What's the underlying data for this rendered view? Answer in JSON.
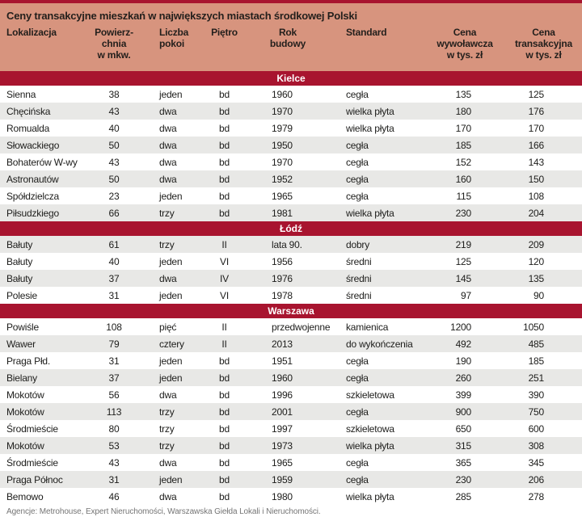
{
  "colors": {
    "accent_red": "#a8142f",
    "header_salmon": "#d7947e",
    "stripe_gray": "#e8e8e6"
  },
  "chart_data": {
    "type": "table",
    "title": "Ceny transakcyjne mieszkań w największych miastach środkowej Polski",
    "columns": [
      "Lokalizacja",
      "Powierz-\nchnia\nw mkw.",
      "Liczba\npokoi",
      "Piętro",
      "Rok\nbudowy",
      "Standard",
      "Cena\nwywoławcza\nw tys. zł",
      "Cena\ntransakcyjna\nw tys. zł"
    ],
    "sections": [
      {
        "city": "Kielce",
        "rows": [
          [
            "Sienna",
            "38",
            "jeden",
            "bd",
            "1960",
            "cegła",
            "135",
            "125"
          ],
          [
            "Chęcińska",
            "43",
            "dwa",
            "bd",
            "1970",
            "wielka płyta",
            "180",
            "176"
          ],
          [
            "Romualda",
            "40",
            "dwa",
            "bd",
            "1979",
            "wielka płyta",
            "170",
            "170"
          ],
          [
            "Słowackiego",
            "50",
            "dwa",
            "bd",
            "1950",
            "cegła",
            "185",
            "166"
          ],
          [
            "Bohaterów W-wy",
            "43",
            "dwa",
            "bd",
            "1970",
            "cegła",
            "152",
            "143"
          ],
          [
            "Astronautów",
            "50",
            "dwa",
            "bd",
            "1952",
            "cegła",
            "160",
            "150"
          ],
          [
            "Spółdzielcza",
            "23",
            "jeden",
            "bd",
            "1965",
            "cegła",
            "115",
            "108"
          ],
          [
            "Piłsudzkiego",
            "66",
            "trzy",
            "bd",
            "1981",
            "wielka płyta",
            "230",
            "204"
          ]
        ]
      },
      {
        "city": "Łódź",
        "rows": [
          [
            "Bałuty",
            "61",
            "trzy",
            "II",
            "lata 90.",
            "dobry",
            "219",
            "209"
          ],
          [
            "Bałuty",
            "40",
            "jeden",
            "VI",
            "1956",
            "średni",
            "125",
            "120"
          ],
          [
            "Bałuty",
            "37",
            "dwa",
            "IV",
            "1976",
            "średni",
            "145",
            "135"
          ],
          [
            "Polesie",
            "31",
            "jeden",
            "VI",
            "1978",
            "średni",
            "97",
            "90"
          ]
        ]
      },
      {
        "city": "Warszawa",
        "rows": [
          [
            "Powiśle",
            "108",
            "pięć",
            "II",
            "przedwojenne",
            "kamienica",
            "1200",
            "1050"
          ],
          [
            "Wawer",
            "79",
            "cztery",
            "II",
            "2013",
            "do wykończenia",
            "492",
            "485"
          ],
          [
            "Praga Płd.",
            "31",
            "jeden",
            "bd",
            "1951",
            "cegła",
            "190",
            "185"
          ],
          [
            "Bielany",
            "37",
            "jeden",
            "bd",
            "1960",
            "cegła",
            "260",
            "251"
          ],
          [
            "Mokotów",
            "56",
            "dwa",
            "bd",
            "1996",
            "szkieletowa",
            "399",
            "390"
          ],
          [
            "Mokotów",
            "113",
            "trzy",
            "bd",
            "2001",
            "cegła",
            "900",
            "750"
          ],
          [
            "Środmieście",
            "80",
            "trzy",
            "bd",
            "1997",
            "szkieletowa",
            "650",
            "600"
          ],
          [
            "Mokotów",
            "53",
            "trzy",
            "bd",
            "1973",
            "wielka płyta",
            "315",
            "308"
          ],
          [
            "Środmieście",
            "43",
            "dwa",
            "bd",
            "1965",
            "cegła",
            "365",
            "345"
          ],
          [
            "Praga Północ",
            "31",
            "jeden",
            "bd",
            "1959",
            "cegła",
            "230",
            "206"
          ],
          [
            "Bemowo",
            "46",
            "dwa",
            "bd",
            "1980",
            "wielka płyta",
            "285",
            "278"
          ]
        ]
      }
    ],
    "source_note": "Agencje: Metrohouse, Expert Nieruchomości, Warszawska Giełda Lokali i Nieruchomości."
  }
}
